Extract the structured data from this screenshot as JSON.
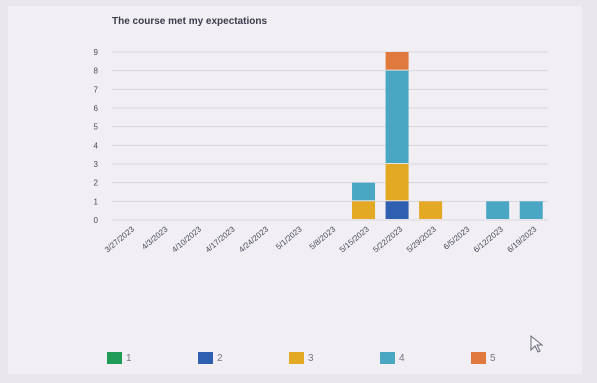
{
  "chart_data": {
    "type": "bar",
    "stacked": true,
    "title": "The course met my expectations",
    "categories": [
      "3/27/2023",
      "4/3/2023",
      "4/10/2023",
      "4/17/2023",
      "4/24/2023",
      "5/1/2023",
      "5/8/2023",
      "5/15/2023",
      "5/22/2023",
      "5/29/2023",
      "6/5/2023",
      "6/12/2023",
      "6/19/2023"
    ],
    "series": [
      {
        "name": "1",
        "color": "#1f9a57",
        "values": [
          0,
          0,
          0,
          0,
          0,
          0,
          0,
          0,
          0,
          0,
          0,
          0,
          0
        ]
      },
      {
        "name": "2",
        "color": "#2f5fb0",
        "values": [
          0,
          0,
          0,
          0,
          0,
          0,
          0,
          0,
          1,
          0,
          0,
          0,
          0
        ]
      },
      {
        "name": "3",
        "color": "#e3a824",
        "values": [
          0,
          0,
          0,
          0,
          0,
          0,
          0,
          1,
          2,
          1,
          0,
          0,
          0
        ]
      },
      {
        "name": "4",
        "color": "#4aa7c4",
        "values": [
          0,
          0,
          0,
          0,
          0,
          0,
          0,
          1,
          5,
          0,
          0,
          1,
          1
        ]
      },
      {
        "name": "5",
        "color": "#e07a3c",
        "values": [
          0,
          0,
          0,
          0,
          0,
          0,
          0,
          0,
          1,
          0,
          0,
          0,
          0
        ]
      }
    ],
    "ylim": [
      0,
      9
    ],
    "yticks": [
      "0",
      "1",
      "2",
      "3",
      "4",
      "5",
      "6",
      "7",
      "8",
      "9"
    ],
    "grid": true,
    "legend_position": "bottom"
  }
}
